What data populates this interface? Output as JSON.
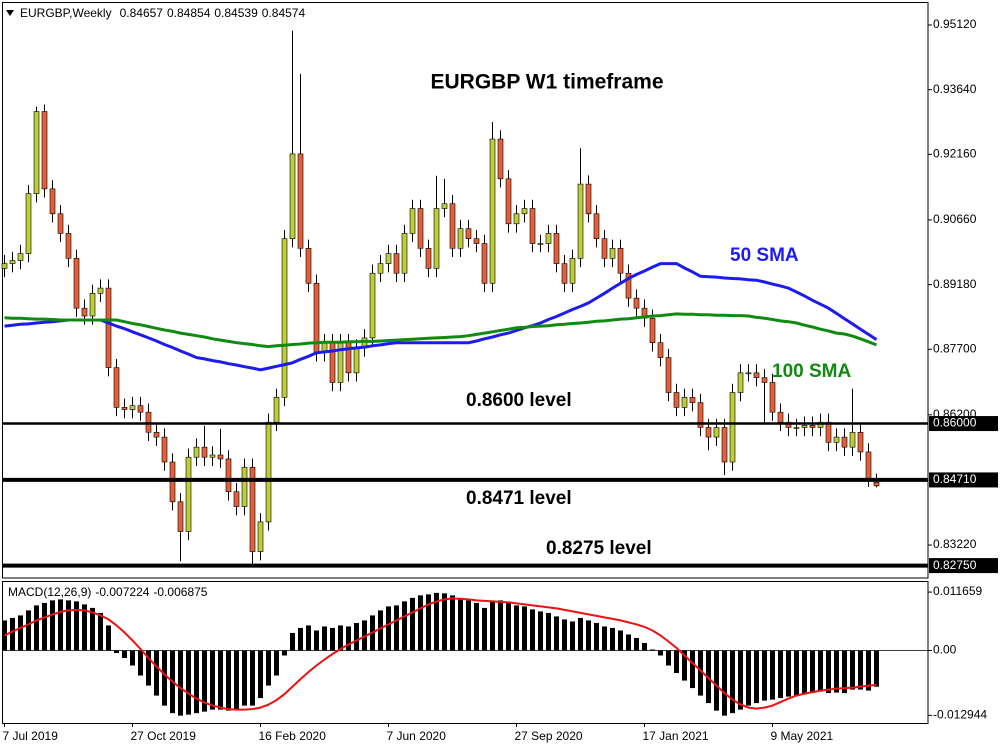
{
  "chart_data": {
    "type": "candlestick",
    "title": "EURGBP W1 timeframe",
    "symbol": "EURGBP,Weekly",
    "categories": [
      "7 Jul 2019",
      null,
      null,
      null,
      null,
      null,
      null,
      null,
      null,
      null,
      null,
      null,
      null,
      null,
      null,
      null,
      "27 Oct 2019",
      null,
      null,
      null,
      null,
      null,
      null,
      null,
      null,
      null,
      null,
      null,
      null,
      null,
      null,
      null,
      "16 Feb 2020",
      null,
      null,
      null,
      null,
      null,
      null,
      null,
      null,
      null,
      null,
      null,
      null,
      null,
      null,
      null,
      "7 Jun 2020",
      null,
      null,
      null,
      null,
      null,
      null,
      null,
      null,
      null,
      null,
      null,
      null,
      null,
      null,
      null,
      "27 Sep 2020",
      null,
      null,
      null,
      null,
      null,
      null,
      null,
      null,
      null,
      null,
      null,
      null,
      null,
      null,
      null,
      "17 Jan 2021",
      null,
      null,
      null,
      null,
      null,
      null,
      null,
      null,
      null,
      null,
      null,
      null,
      null,
      null,
      null,
      "9 May 2021",
      null,
      null,
      null,
      null,
      null,
      null,
      null,
      null,
      null,
      null,
      null,
      null,
      null
    ],
    "open": [
      0.8955,
      0.8966,
      0.8973,
      0.8989,
      0.9126,
      0.9314,
      0.9137,
      0.908,
      0.9035,
      0.8978,
      0.8864,
      0.8846,
      0.8898,
      0.891,
      0.8728,
      0.8637,
      0.8632,
      0.8641,
      0.8626,
      0.858,
      0.8569,
      0.8512,
      0.8421,
      0.8353,
      0.8523,
      0.8546,
      0.8523,
      0.8528,
      0.8519,
      0.8444,
      0.841,
      0.85,
      0.8307,
      0.8375,
      0.8603,
      0.866,
      0.9023,
      0.9217,
      0.9001,
      0.8921,
      0.8762,
      0.8785,
      0.8694,
      0.8785,
      0.8716,
      0.8773,
      0.8796,
      0.8944,
      0.8966,
      0.8989,
      0.8944,
      0.9035,
      0.9092,
      0.9001,
      0.8955,
      0.9092,
      0.9103,
      0.9001,
      0.9046,
      0.9023,
      0.9012,
      0.8921,
      0.9251,
      0.916,
      0.9057,
      0.908,
      0.9092,
      0.9012,
      0.9012,
      0.9035,
      0.8966,
      0.8921,
      0.8978,
      0.9148,
      0.908,
      0.9023,
      0.8978,
      0.9001,
      0.8944,
      0.8887,
      0.8864,
      0.8841,
      0.8785,
      0.8751,
      0.8671,
      0.8637,
      0.866,
      0.8648,
      0.8591,
      0.8569,
      0.8591,
      0.8512,
      0.8671,
      0.8716,
      0.8716,
      0.8705,
      0.8694,
      0.8626,
      0.8603,
      0.8591,
      0.8591,
      0.8596,
      0.8591,
      0.8603,
      0.8557,
      0.8569,
      0.8546,
      0.858,
      0.8535,
      0.84657
    ],
    "high": [
      0.8986,
      0.8993,
      0.9009,
      0.9146,
      0.9325,
      0.933,
      0.9157,
      0.91,
      0.9055,
      0.8998,
      0.8884,
      0.8918,
      0.893,
      0.893,
      0.8748,
      0.8657,
      0.8661,
      0.8661,
      0.8646,
      0.86,
      0.8589,
      0.8532,
      0.8441,
      0.8543,
      0.8566,
      0.8595,
      0.8548,
      0.8588,
      0.8539,
      0.8464,
      0.852,
      0.852,
      0.8395,
      0.8623,
      0.868,
      0.9043,
      0.9499,
      0.94,
      0.9021,
      0.8941,
      0.8805,
      0.8805,
      0.8805,
      0.8805,
      0.8793,
      0.8816,
      0.8964,
      0.8986,
      0.9009,
      0.9009,
      0.9055,
      0.9112,
      0.9112,
      0.9021,
      0.9167,
      0.916,
      0.9123,
      0.9066,
      0.9066,
      0.9043,
      0.9032,
      0.929,
      0.9271,
      0.918,
      0.91,
      0.9112,
      0.9112,
      0.9032,
      0.9055,
      0.9055,
      0.8986,
      0.8998,
      0.923,
      0.9168,
      0.91,
      0.9043,
      0.9021,
      0.9021,
      0.8964,
      0.8907,
      0.8884,
      0.8861,
      0.8805,
      0.8771,
      0.8691,
      0.868,
      0.868,
      0.8668,
      0.8611,
      0.8611,
      0.8611,
      0.8691,
      0.8736,
      0.8736,
      0.8736,
      0.8725,
      0.8714,
      0.8646,
      0.8623,
      0.8611,
      0.8616,
      0.8616,
      0.8623,
      0.8623,
      0.8589,
      0.8589,
      0.868,
      0.86,
      0.8555,
      0.84854
    ],
    "low": [
      0.8935,
      0.8946,
      0.8953,
      0.8969,
      0.9106,
      0.9117,
      0.906,
      0.9015,
      0.8958,
      0.8844,
      0.8826,
      0.8826,
      0.8878,
      0.8708,
      0.8617,
      0.8612,
      0.8612,
      0.8606,
      0.856,
      0.8549,
      0.8492,
      0.8401,
      0.8285,
      0.8333,
      0.8503,
      0.8503,
      0.8503,
      0.8499,
      0.8424,
      0.839,
      0.839,
      0.8277,
      0.8287,
      0.8355,
      0.8583,
      0.864,
      0.9003,
      0.8981,
      0.8901,
      0.8742,
      0.8742,
      0.8674,
      0.8674,
      0.8696,
      0.8696,
      0.8753,
      0.8776,
      0.8924,
      0.8946,
      0.8924,
      0.8924,
      0.9015,
      0.8981,
      0.8935,
      0.8935,
      0.9072,
      0.8981,
      0.8981,
      0.9003,
      0.8992,
      0.8901,
      0.8901,
      0.914,
      0.9037,
      0.9037,
      0.906,
      0.8992,
      0.8992,
      0.8992,
      0.8946,
      0.8901,
      0.8901,
      0.8958,
      0.906,
      0.9003,
      0.8958,
      0.8958,
      0.8924,
      0.8867,
      0.8844,
      0.8821,
      0.8765,
      0.8731,
      0.8651,
      0.8617,
      0.8617,
      0.8628,
      0.8571,
      0.8539,
      0.8549,
      0.8482,
      0.8492,
      0.8651,
      0.8696,
      0.8685,
      0.86,
      0.8606,
      0.8583,
      0.8571,
      0.8571,
      0.8571,
      0.8571,
      0.8571,
      0.8537,
      0.8537,
      0.8526,
      0.8526,
      0.8515,
      0.8455,
      0.84539
    ],
    "close": [
      0.8966,
      0.8973,
      0.8989,
      0.9126,
      0.9314,
      0.9137,
      0.908,
      0.9035,
      0.8978,
      0.8864,
      0.8846,
      0.8898,
      0.891,
      0.8728,
      0.8637,
      0.8632,
      0.8641,
      0.8626,
      0.858,
      0.8569,
      0.8512,
      0.8421,
      0.8353,
      0.8523,
      0.8546,
      0.8523,
      0.8528,
      0.8519,
      0.8444,
      0.841,
      0.85,
      0.8307,
      0.8375,
      0.8603,
      0.866,
      0.9023,
      0.9217,
      0.9001,
      0.8921,
      0.8762,
      0.8785,
      0.8694,
      0.8785,
      0.8716,
      0.8773,
      0.8796,
      0.8944,
      0.8966,
      0.8989,
      0.8944,
      0.9035,
      0.9092,
      0.9001,
      0.8955,
      0.9092,
      0.9103,
      0.9001,
      0.9046,
      0.9023,
      0.9012,
      0.8921,
      0.9251,
      0.916,
      0.9057,
      0.908,
      0.9092,
      0.9012,
      0.9012,
      0.9035,
      0.8966,
      0.8921,
      0.8978,
      0.9148,
      0.908,
      0.9023,
      0.8978,
      0.9001,
      0.8944,
      0.8887,
      0.8864,
      0.8841,
      0.8785,
      0.8751,
      0.8671,
      0.8637,
      0.866,
      0.8648,
      0.8591,
      0.8569,
      0.8591,
      0.8512,
      0.8671,
      0.8716,
      0.8716,
      0.8705,
      0.8694,
      0.8626,
      0.8603,
      0.8591,
      0.8591,
      0.8596,
      0.8591,
      0.8603,
      0.8557,
      0.8569,
      0.8546,
      0.858,
      0.8535,
      0.8475,
      0.84574
    ],
    "up_color": "#bccc3a",
    "down_color": "#e2603a",
    "ylim": [
      0.82466,
      0.95623
    ],
    "yticks": [
      {
        "value": 0.9512,
        "label": "0.95120"
      },
      {
        "value": 0.9364,
        "label": "0.93640"
      },
      {
        "value": 0.9216,
        "label": "0.92160"
      },
      {
        "value": 0.9066,
        "label": "0.90660"
      },
      {
        "value": 0.8918,
        "label": "0.89180"
      },
      {
        "value": 0.877,
        "label": "0.87700"
      },
      {
        "value": 0.862,
        "label": "0.86200"
      },
      {
        "value": 0.8322,
        "label": "0.83220"
      }
    ],
    "lines": [
      {
        "name": "50 SMA",
        "color": "#1c1cf0",
        "values": [
          0.8823,
          0.8825,
          0.8827,
          0.8828,
          0.883,
          0.8832,
          0.8833,
          0.8835,
          0.8837,
          0.8837,
          0.8837,
          0.8837,
          0.8837,
          0.883,
          0.8823,
          0.8817,
          0.881,
          0.8803,
          0.8796,
          0.8789,
          0.8781,
          0.8774,
          0.8766,
          0.8759,
          0.8751,
          0.8748,
          0.8744,
          0.8741,
          0.8737,
          0.8734,
          0.873,
          0.8727,
          0.8723,
          0.8727,
          0.8731,
          0.8735,
          0.8739,
          0.8747,
          0.8754,
          0.8762,
          0.8764,
          0.8766,
          0.8769,
          0.8771,
          0.8773,
          0.8775,
          0.8778,
          0.878,
          0.8783,
          0.8785,
          0.8785,
          0.8785,
          0.8785,
          0.8785,
          0.8785,
          0.8785,
          0.8785,
          0.8785,
          0.8785,
          0.8789,
          0.8794,
          0.8798,
          0.8803,
          0.8807,
          0.8813,
          0.8819,
          0.8824,
          0.883,
          0.8838,
          0.8845,
          0.8853,
          0.8861,
          0.8868,
          0.8876,
          0.8887,
          0.8898,
          0.891,
          0.8921,
          0.8932,
          0.8941,
          0.8949,
          0.8958,
          0.8966,
          0.8966,
          0.8966,
          0.8956,
          0.8947,
          0.8937,
          0.8936,
          0.8935,
          0.8933,
          0.8932,
          0.8931,
          0.8929,
          0.8928,
          0.8924,
          0.8919,
          0.8915,
          0.891,
          0.8901,
          0.8892,
          0.8882,
          0.8873,
          0.8864,
          0.8852,
          0.884,
          0.8828,
          0.8816,
          0.8804,
          0.8792
        ]
      },
      {
        "name": "100 SMA",
        "color": "#118a11",
        "values": [
          0.8842,
          0.8841,
          0.8841,
          0.884,
          0.8839,
          0.8839,
          0.8838,
          0.8837,
          0.8837,
          0.8837,
          0.8837,
          0.8837,
          0.8837,
          0.8837,
          0.8837,
          0.8833,
          0.8829,
          0.8826,
          0.8822,
          0.8818,
          0.8814,
          0.8811,
          0.8807,
          0.8804,
          0.8801,
          0.8798,
          0.8794,
          0.8791,
          0.8788,
          0.8785,
          0.8783,
          0.8781,
          0.8778,
          0.8776,
          0.8778,
          0.8779,
          0.8781,
          0.8782,
          0.8784,
          0.8785,
          0.8786,
          0.8786,
          0.8786,
          0.8787,
          0.8787,
          0.8788,
          0.8788,
          0.8789,
          0.879,
          0.8791,
          0.8792,
          0.8793,
          0.8794,
          0.8795,
          0.8796,
          0.8797,
          0.8798,
          0.8799,
          0.8801,
          0.8804,
          0.8807,
          0.881,
          0.8813,
          0.8816,
          0.8819,
          0.882,
          0.8822,
          0.8823,
          0.8824,
          0.8826,
          0.8827,
          0.8829,
          0.883,
          0.8832,
          0.8834,
          0.8835,
          0.8837,
          0.8839,
          0.884,
          0.8842,
          0.8844,
          0.8846,
          0.8847,
          0.8849,
          0.8851,
          0.885,
          0.885,
          0.8849,
          0.8849,
          0.8848,
          0.8848,
          0.8847,
          0.8847,
          0.8846,
          0.8843,
          0.8841,
          0.8838,
          0.8835,
          0.8833,
          0.883,
          0.8825,
          0.8821,
          0.8816,
          0.8812,
          0.8807,
          0.8805,
          0.88,
          0.8794,
          0.8787,
          0.878
        ]
      }
    ],
    "levels": [
      {
        "value": 0.86,
        "label": "0.86000",
        "annotation": "0.8600 level"
      },
      {
        "value": 0.8471,
        "label": "0.84710",
        "annotation": "0.8471 level"
      },
      {
        "value": 0.8275,
        "label": "0.82750",
        "annotation": "0.8275 level"
      }
    ],
    "macd": {
      "type": "macd",
      "label": "MACD(12,26,9)",
      "histogram": [
        0.006,
        0.0065,
        0.007,
        0.008,
        0.009,
        0.0095,
        0.01,
        0.0102,
        0.01,
        0.0098,
        0.0092,
        0.0085,
        0.0075,
        0.005,
        -0.0005,
        -0.0015,
        -0.003,
        -0.005,
        -0.007,
        -0.009,
        -0.011,
        -0.0125,
        -0.013,
        -0.0128,
        -0.0125,
        -0.0122,
        -0.0118,
        -0.0118,
        -0.012,
        -0.0118,
        -0.011,
        -0.011,
        -0.0095,
        -0.007,
        -0.005,
        -0.001,
        0.0035,
        0.0045,
        0.005,
        0.004,
        0.0048,
        0.0045,
        0.005,
        0.0048,
        0.0055,
        0.006,
        0.007,
        0.008,
        0.0088,
        0.009,
        0.0098,
        0.0105,
        0.011,
        0.0112,
        0.0115,
        0.0114,
        0.011,
        0.0105,
        0.01,
        0.0095,
        0.0085,
        0.01,
        0.01,
        0.0095,
        0.009,
        0.0088,
        0.0082,
        0.0078,
        0.0075,
        0.0068,
        0.0062,
        0.0058,
        0.0065,
        0.006,
        0.0055,
        0.0048,
        0.0045,
        0.004,
        0.0032,
        0.0025,
        0.0015,
        0.0002,
        -0.001,
        -0.003,
        -0.0045,
        -0.006,
        -0.0075,
        -0.009,
        -0.0105,
        -0.012,
        -0.013,
        -0.0125,
        -0.0118,
        -0.011,
        -0.0105,
        -0.01,
        -0.0098,
        -0.0095,
        -0.0092,
        -0.009,
        -0.0088,
        -0.0085,
        -0.0082,
        -0.0085,
        -0.0084,
        -0.0085,
        -0.0078,
        -0.0078,
        -0.008,
        -0.007224
      ],
      "signal": [
        0.003,
        0.0038,
        0.0045,
        0.0052,
        0.006,
        0.0066,
        0.0072,
        0.0077,
        0.008,
        0.0081,
        0.008,
        0.0076,
        0.007,
        0.0062,
        0.005,
        0.0036,
        0.002,
        0.0003,
        -0.0015,
        -0.0032,
        -0.0048,
        -0.0062,
        -0.0075,
        -0.0086,
        -0.0096,
        -0.0104,
        -0.011,
        -0.0114,
        -0.0117,
        -0.0118,
        -0.0118,
        -0.0117,
        -0.0114,
        -0.0108,
        -0.0099,
        -0.0087,
        -0.0072,
        -0.0057,
        -0.0043,
        -0.003,
        -0.0018,
        -0.0007,
        0.0003,
        0.0012,
        0.002,
        0.0028,
        0.0036,
        0.0044,
        0.0052,
        0.006,
        0.0068,
        0.0076,
        0.0084,
        0.0092,
        0.0098,
        0.0102,
        0.0104,
        0.0103,
        0.0102,
        0.01,
        0.0099,
        0.0098,
        0.0097,
        0.0096,
        0.0094,
        0.0092,
        0.009,
        0.0088,
        0.0086,
        0.0084,
        0.0081,
        0.0078,
        0.0075,
        0.0072,
        0.0069,
        0.0066,
        0.0063,
        0.006,
        0.0056,
        0.0052,
        0.0047,
        0.004,
        0.003,
        0.0018,
        0.0005,
        -0.001,
        -0.0025,
        -0.004,
        -0.0055,
        -0.007,
        -0.0085,
        -0.0098,
        -0.0108,
        -0.0114,
        -0.0116,
        -0.0114,
        -0.011,
        -0.0103,
        -0.0096,
        -0.009,
        -0.0086,
        -0.0083,
        -0.008,
        -0.0078,
        -0.0076,
        -0.0075,
        -0.0074,
        -0.0072,
        -0.007,
        -0.006875
      ],
      "histogram_color": "#000000",
      "signal_color": "#ee1111",
      "ylim": [
        -0.01447,
        0.01367
      ],
      "yticks": [
        0.011659,
        {
          "value": 0,
          "label": "0.00"
        },
        -0.012944
      ]
    }
  }
}
